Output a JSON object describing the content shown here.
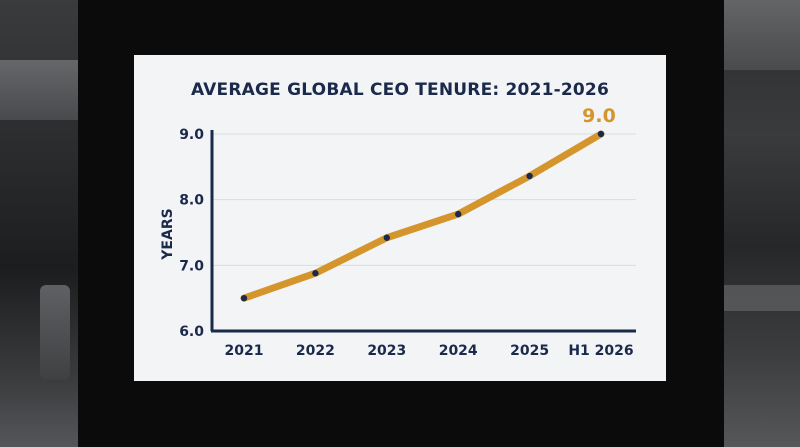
{
  "chart_data": {
    "type": "line",
    "title": "AVERAGE GLOBAL CEO TENURE: 2021-2026",
    "xlabel": "",
    "ylabel": "YEARS",
    "categories": [
      "2021",
      "2022",
      "2023",
      "2024",
      "2025",
      "H1 2026"
    ],
    "series": [
      {
        "values": [
          6.5,
          6.88,
          7.42,
          7.78,
          8.36,
          9.0
        ]
      }
    ],
    "ylim": [
      6.0,
      9.0
    ],
    "yticks": [
      6.0,
      7.0,
      8.0,
      9.0
    ],
    "ytick_labels": [
      "6.0",
      "7.0",
      "8.0",
      "9.0"
    ],
    "grid": true,
    "line_color": "#d4962c",
    "marker_color": "#1b2a4a",
    "axis_color": "#1b2a4a",
    "annotations": [
      {
        "category": "H1 2026",
        "text": "9.0"
      }
    ]
  }
}
